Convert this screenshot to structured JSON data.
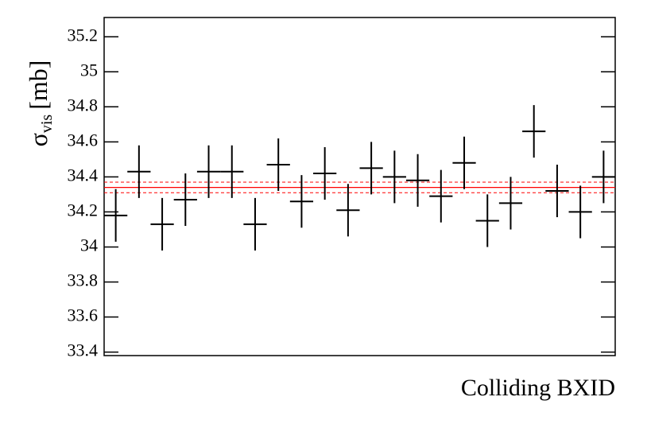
{
  "chart_data": {
    "type": "errorbar",
    "x_label": "Colliding BXID",
    "y_label": {
      "symbol": "σ",
      "subscript": "vis",
      "unit": "[mb]"
    },
    "categories": [
      null,
      null,
      null,
      null,
      null,
      null,
      null,
      null,
      null,
      null,
      null,
      null,
      null,
      null,
      null,
      null,
      null,
      null,
      null,
      null,
      null,
      null
    ],
    "values": [
      34.18,
      34.43,
      34.13,
      34.27,
      34.43,
      34.43,
      34.13,
      34.47,
      34.26,
      34.42,
      34.21,
      34.45,
      34.4,
      34.38,
      34.29,
      34.48,
      34.15,
      34.25,
      34.66,
      34.32,
      34.2,
      34.4
    ],
    "errors": [
      0.15,
      0.15,
      0.15,
      0.15,
      0.15,
      0.15,
      0.15,
      0.15,
      0.15,
      0.15,
      0.15,
      0.15,
      0.15,
      0.15,
      0.15,
      0.15,
      0.15,
      0.15,
      0.15,
      0.15,
      0.15,
      0.15
    ],
    "color": "#000000",
    "fit": {
      "value": 34.34,
      "error": 0.03,
      "color": "#ff0000"
    },
    "ylim": [
      33.38,
      35.31
    ],
    "yticks": [
      33.4,
      33.6,
      33.8,
      34,
      34.2,
      34.4,
      34.6,
      34.8,
      35,
      35.2
    ]
  }
}
